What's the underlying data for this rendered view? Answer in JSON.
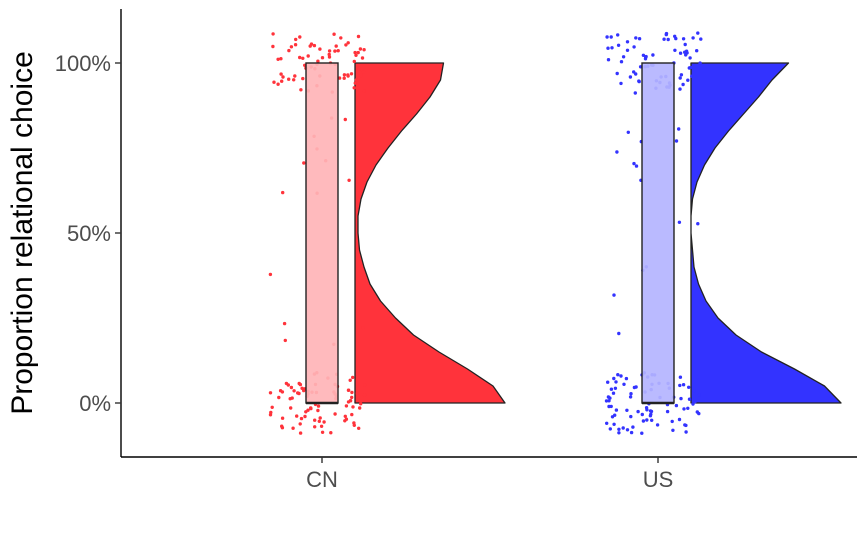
{
  "chart_data": {
    "type": "raincloud",
    "title": "",
    "xlabel": "",
    "ylabel": "Proportion relational choice",
    "ylim": [
      -0.16,
      1.16
    ],
    "y_ticks": [
      {
        "value": 0,
        "label": "0%"
      },
      {
        "value": 0.5,
        "label": "50%"
      },
      {
        "value": 1.0,
        "label": "100%"
      }
    ],
    "categories": [
      "CN",
      "US"
    ],
    "grid": false,
    "legend": "none",
    "series": [
      {
        "category": "CN",
        "color": "#ff333b",
        "box_fill": "#ffb4b7",
        "box": {
          "q1": 0.0,
          "median": 0.0,
          "q3": 1.0
        },
        "density": {
          "y": [
            0,
            0.05,
            0.1,
            0.15,
            0.2,
            0.25,
            0.3,
            0.35,
            0.4,
            0.45,
            0.5,
            0.55,
            0.6,
            0.65,
            0.7,
            0.75,
            0.8,
            0.85,
            0.9,
            0.95,
            1.0
          ],
          "d": [
            1.0,
            0.92,
            0.75,
            0.56,
            0.39,
            0.27,
            0.17,
            0.1,
            0.06,
            0.03,
            0.02,
            0.02,
            0.04,
            0.08,
            0.14,
            0.22,
            0.31,
            0.41,
            0.5,
            0.57,
            0.59
          ]
        }
      },
      {
        "category": "US",
        "color": "#3333ff",
        "box_fill": "#b4b4ff",
        "box": {
          "q1": 0.0,
          "median": 0.0,
          "q3": 1.0
        },
        "density": {
          "y": [
            0,
            0.05,
            0.1,
            0.15,
            0.2,
            0.25,
            0.3,
            0.35,
            0.4,
            0.45,
            0.5,
            0.55,
            0.6,
            0.65,
            0.7,
            0.75,
            0.8,
            0.85,
            0.9,
            0.95,
            1.0
          ],
          "d": [
            1.0,
            0.89,
            0.69,
            0.47,
            0.3,
            0.18,
            0.1,
            0.05,
            0.02,
            0.01,
            0.0,
            0.0,
            0.01,
            0.04,
            0.09,
            0.16,
            0.25,
            0.35,
            0.45,
            0.54,
            0.65
          ]
        }
      }
    ]
  }
}
